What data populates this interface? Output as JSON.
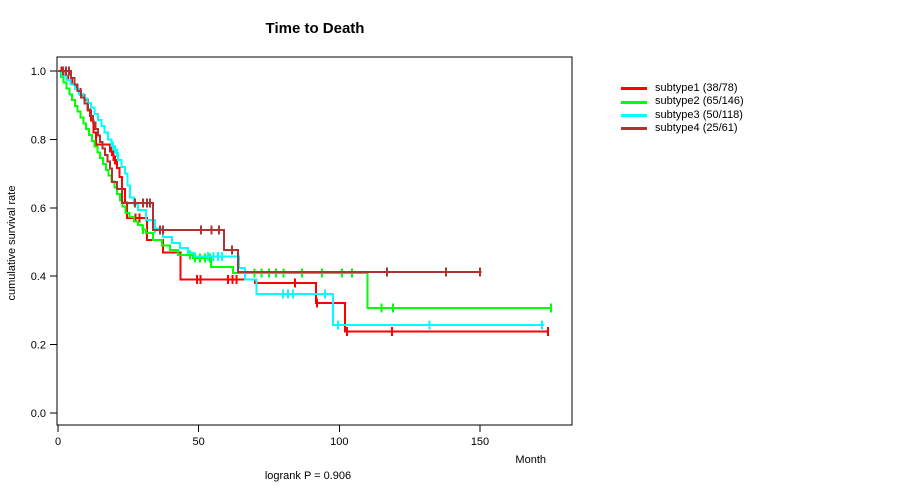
{
  "title": "Time to Death",
  "footer": {
    "text": "logrank P = 0.906"
  },
  "axes": {
    "x": {
      "label": "Month",
      "ticks": [
        0,
        50,
        100,
        150
      ]
    },
    "y": {
      "label": "cumulative survival rate",
      "ticks": [
        "1.0",
        "0.8",
        "0.6",
        "0.4",
        "0.2",
        "0.0"
      ]
    }
  },
  "legend": {
    "items": [
      {
        "label": "subtype1 (38/78)",
        "color": "#FF0000"
      },
      {
        "label": "subtype2 (65/146)",
        "color": "#00FF00"
      },
      {
        "label": "subtype3 (50/118)",
        "color": "#00FFFF"
      },
      {
        "label": "subtype4 (25/61)",
        "color": "#AE3434"
      }
    ]
  },
  "chart_data": {
    "type": "line",
    "subtype": "kaplan-meier-step",
    "title": "Time to Death",
    "xlabel": "Month",
    "ylabel": "cumulative survival rate",
    "xlim": [
      0,
      183
    ],
    "ylim": [
      0,
      1
    ],
    "x_ticks": [
      0,
      50,
      100,
      150
    ],
    "y_ticks": [
      1.0,
      0.8,
      0.6,
      0.4,
      0.2,
      0.0
    ],
    "grid": false,
    "legend_position": "right-outside",
    "annotation": "logrank P = 0.906",
    "series": [
      {
        "name": "subtype1 (38/78)",
        "color": "#FF0000",
        "steps": [
          [
            2,
            0.987
          ],
          [
            3.5,
            0.974
          ],
          [
            5,
            0.961
          ],
          [
            6.5,
            0.948
          ],
          [
            8,
            0.93
          ],
          [
            9.5,
            0.915
          ],
          [
            10.7,
            0.885
          ],
          [
            11.7,
            0.855
          ],
          [
            12.7,
            0.82
          ],
          [
            13.5,
            0.785
          ],
          [
            18.5,
            0.764
          ],
          [
            19.8,
            0.74
          ],
          [
            21,
            0.716
          ],
          [
            21.8,
            0.69
          ],
          [
            22.8,
            0.655
          ],
          [
            23.8,
            0.615
          ],
          [
            24.6,
            0.57
          ],
          [
            31.6,
            0.506
          ],
          [
            37.3,
            0.47
          ],
          [
            43.5,
            0.39
          ],
          [
            70,
            0.38
          ],
          [
            91.7,
            0.322
          ],
          [
            102,
            0.238
          ]
        ],
        "end": 174.6,
        "censors": [
          1.3,
          19.2,
          20.2,
          27.5,
          29,
          49.4,
          50.6,
          60.5,
          62,
          63.5,
          84.3,
          92,
          102.7,
          118.7,
          174.2
        ]
      },
      {
        "name": "subtype2 (65/146)",
        "color": "#00FF00",
        "steps": [
          [
            1,
            0.983
          ],
          [
            2,
            0.966
          ],
          [
            3,
            0.949
          ],
          [
            4,
            0.932
          ],
          [
            5,
            0.915
          ],
          [
            6,
            0.898
          ],
          [
            7,
            0.881
          ],
          [
            8,
            0.864
          ],
          [
            9,
            0.847
          ],
          [
            10,
            0.83
          ],
          [
            11,
            0.813
          ],
          [
            12,
            0.796
          ],
          [
            13,
            0.779
          ],
          [
            14,
            0.762
          ],
          [
            15,
            0.745
          ],
          [
            16,
            0.728
          ],
          [
            17,
            0.711
          ],
          [
            18,
            0.694
          ],
          [
            19,
            0.677
          ],
          [
            20,
            0.66
          ],
          [
            21,
            0.64
          ],
          [
            22,
            0.622
          ],
          [
            23,
            0.604
          ],
          [
            24,
            0.585
          ],
          [
            25.5,
            0.573
          ],
          [
            27,
            0.56
          ],
          [
            28.4,
            0.55
          ],
          [
            30,
            0.537
          ],
          [
            31.2,
            0.526
          ],
          [
            33.8,
            0.506
          ],
          [
            37,
            0.49
          ],
          [
            39.8,
            0.477
          ],
          [
            42.7,
            0.462
          ],
          [
            48,
            0.453
          ],
          [
            54.4,
            0.427
          ],
          [
            62.2,
            0.409
          ],
          [
            110,
            0.307
          ]
        ],
        "end": 175.6,
        "censors": [
          30.2,
          46.9,
          48.7,
          50.5,
          52.3,
          54,
          69.9,
          72.3,
          75,
          77.5,
          80.2,
          86.7,
          93.8,
          101,
          104.5,
          115,
          119,
          175.3
        ]
      },
      {
        "name": "subtype3 (50/118)",
        "color": "#00FFFF",
        "steps": [
          [
            1.5,
            0.987
          ],
          [
            3,
            0.974
          ],
          [
            4.5,
            0.96
          ],
          [
            6,
            0.947
          ],
          [
            7.5,
            0.933
          ],
          [
            9,
            0.92
          ],
          [
            10.5,
            0.907
          ],
          [
            11.8,
            0.893
          ],
          [
            13,
            0.875
          ],
          [
            14.2,
            0.857
          ],
          [
            15.4,
            0.839
          ],
          [
            16.6,
            0.82
          ],
          [
            17.8,
            0.8
          ],
          [
            19,
            0.78
          ],
          [
            20.2,
            0.76
          ],
          [
            21.4,
            0.74
          ],
          [
            22.6,
            0.72
          ],
          [
            23.8,
            0.7
          ],
          [
            24.7,
            0.665
          ],
          [
            25.6,
            0.63
          ],
          [
            27,
            0.61
          ],
          [
            28.4,
            0.594
          ],
          [
            31.2,
            0.564
          ],
          [
            34.5,
            0.54
          ],
          [
            37.3,
            0.515
          ],
          [
            40.5,
            0.497
          ],
          [
            43.4,
            0.482
          ],
          [
            46.2,
            0.468
          ],
          [
            48.5,
            0.458
          ],
          [
            64.4,
            0.424
          ],
          [
            66.5,
            0.39
          ],
          [
            70.6,
            0.348
          ],
          [
            97.8,
            0.257
          ]
        ],
        "end": 172.8,
        "censors": [
          19.5,
          21,
          34.5,
          53.3,
          55.2,
          56.8,
          58.3,
          80,
          81.7,
          83.5,
          94.9,
          99.6,
          132,
          172
        ]
      },
      {
        "name": "subtype4 (25/61)",
        "color": "#AE3434",
        "steps": [
          [
            4.6,
            0.98
          ],
          [
            5.8,
            0.961
          ],
          [
            7,
            0.942
          ],
          [
            8.2,
            0.923
          ],
          [
            9.4,
            0.905
          ],
          [
            10.4,
            0.887
          ],
          [
            11.4,
            0.868
          ],
          [
            12.4,
            0.85
          ],
          [
            13.3,
            0.831
          ],
          [
            14.2,
            0.812
          ],
          [
            15,
            0.793
          ],
          [
            15.9,
            0.774
          ],
          [
            16.7,
            0.754
          ],
          [
            17.6,
            0.735
          ],
          [
            18.4,
            0.715
          ],
          [
            19.2,
            0.676
          ],
          [
            20.9,
            0.655
          ],
          [
            22.8,
            0.614
          ],
          [
            33.8,
            0.535
          ],
          [
            59,
            0.477
          ],
          [
            64,
            0.412
          ]
        ],
        "end": 150.5,
        "censors": [
          1.8,
          2.8,
          3.9,
          27.4,
          30.2,
          31.6,
          32.7,
          36.3,
          37.3,
          50.8,
          54.5,
          57.3,
          61.9,
          117,
          138,
          150
        ]
      }
    ]
  }
}
